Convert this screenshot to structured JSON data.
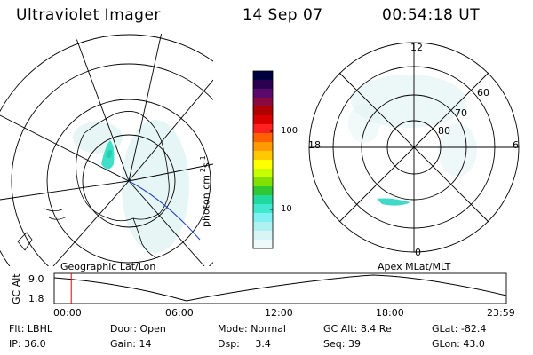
{
  "header": {
    "instrument": "Ultraviolet Imager",
    "date": "14 Sep 07",
    "time": "00:54:18 UT"
  },
  "colorbar": {
    "label": "photon cm",
    "exp1": "-2",
    "mid": "s",
    "exp2": "-1",
    "ticks": [
      "100",
      "10"
    ],
    "colors": [
      "#000040",
      "#2a0050",
      "#5a0a6a",
      "#8a0a40",
      "#b00000",
      "#d80000",
      "#ff2020",
      "#ff6000",
      "#ff9a00",
      "#ffc800",
      "#ffff00",
      "#c8ff00",
      "#80e000",
      "#30c830",
      "#20d8a0",
      "#40e8d0",
      "#80f0f0",
      "#b0f0f0",
      "#d8f4f4",
      "#eefafa"
    ]
  },
  "left_map": {
    "caption": "Geographic Lat/Lon"
  },
  "right_map": {
    "caption": "Apex MLat/MLT",
    "mlt_labels": [
      "12",
      "18",
      "6",
      "0"
    ],
    "lat_labels": [
      "60",
      "70",
      "80"
    ]
  },
  "timeline": {
    "y_axis_label": "GC Alt",
    "y_ticks": [
      "9.0",
      "1.8"
    ],
    "x_ticks": [
      "00:00",
      "06:00",
      "12:00",
      "18:00",
      "23:59"
    ],
    "marker_color": "#e00000",
    "marker_fraction": 0.0377
  },
  "info": {
    "filter": {
      "label": "Flt:",
      "value": "LBHL"
    },
    "ip": {
      "label": "IP:",
      "value": "36.0"
    },
    "door": {
      "label": "Door:",
      "value": "Open"
    },
    "gain": {
      "label": "Gain:",
      "value": "14"
    },
    "mode": {
      "label": "Mode:",
      "value": "Normal"
    },
    "dsp": {
      "label": "Dsp:",
      "value": "3.4"
    },
    "gc_alt": {
      "label": "GC Alt:",
      "value": "8.4 Re"
    },
    "seq": {
      "label": "Seq:",
      "value": "39"
    },
    "glat": {
      "label": "GLat:",
      "value": "-82.4"
    },
    "glon": {
      "label": "GLon:",
      "value": "43.0"
    }
  }
}
